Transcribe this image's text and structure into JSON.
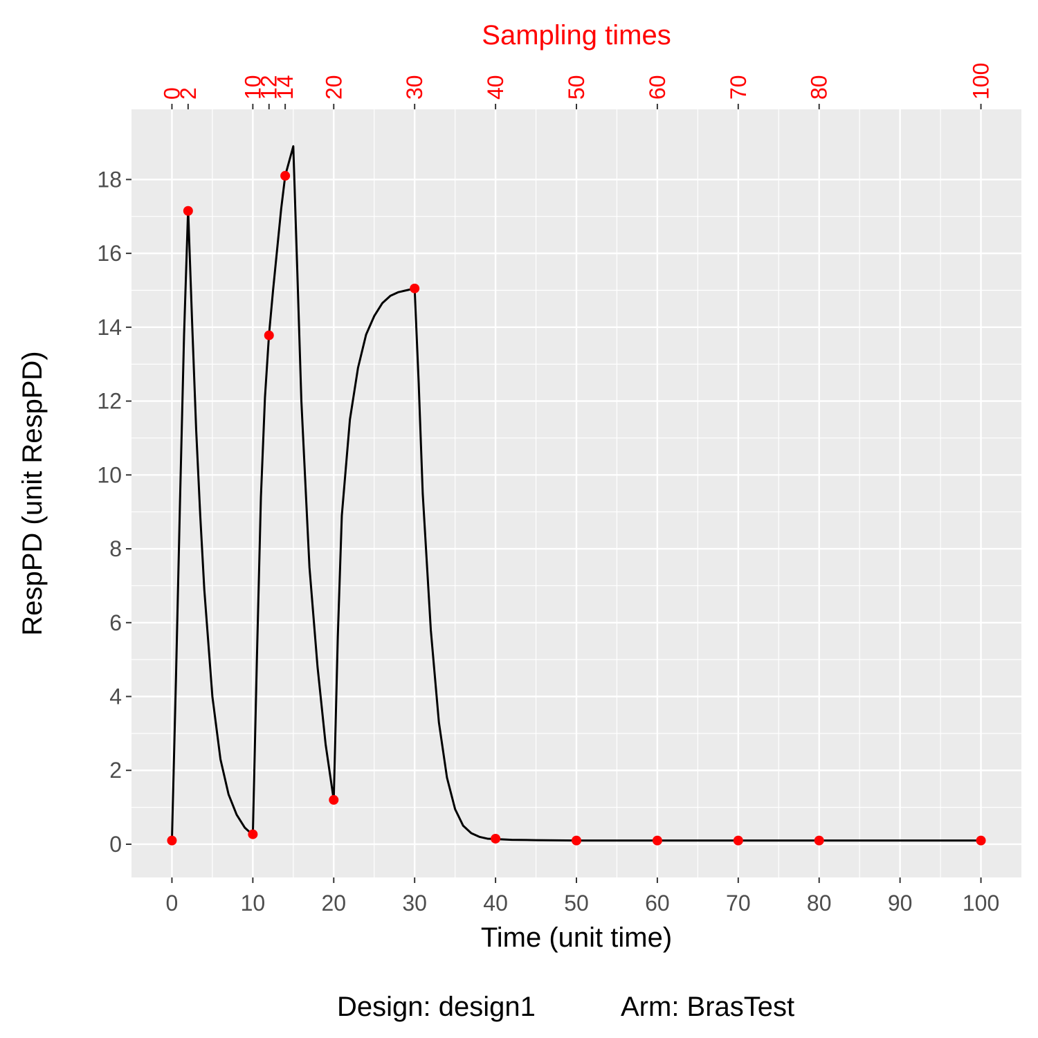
{
  "chart_data": {
    "type": "line",
    "title": "",
    "xlabel": "Time (unit time)",
    "ylabel": "RespPD (unit RespPD)",
    "top_axis_title": "Sampling times",
    "caption_design": "Design: design1",
    "caption_arm": "Arm: BrasTest",
    "xlim": [
      -5,
      105
    ],
    "ylim": [
      -0.9,
      19.9
    ],
    "x_ticks": [
      0,
      10,
      20,
      30,
      40,
      50,
      60,
      70,
      80,
      90,
      100
    ],
    "x_tick_labels": [
      "0",
      "10",
      "20",
      "30",
      "40",
      "50",
      "60",
      "70",
      "80",
      "90",
      "100"
    ],
    "y_ticks": [
      0,
      2,
      4,
      6,
      8,
      10,
      12,
      14,
      16,
      18
    ],
    "y_tick_labels": [
      "0",
      "2",
      "4",
      "6",
      "8",
      "10",
      "12",
      "14",
      "16",
      "18"
    ],
    "sampling_times": [
      0,
      2,
      10,
      12,
      14,
      20,
      30,
      40,
      50,
      60,
      70,
      80,
      100
    ],
    "sampling_time_labels": [
      "0",
      "2",
      "10",
      "12",
      "14",
      "20",
      "30",
      "40",
      "50",
      "60",
      "70",
      "80",
      "100"
    ],
    "grid": true,
    "panel_color": "#ebebeb",
    "curve_color": "#000000",
    "point_color": "#ff0000",
    "series": [
      {
        "name": "",
        "type": "line",
        "x": [
          0,
          0.5,
          1,
          1.5,
          2,
          2.5,
          3,
          3.5,
          4,
          5,
          6,
          7,
          8,
          9,
          10,
          10.5,
          11,
          11.5,
          12,
          12.5,
          13,
          13.5,
          14,
          14.5,
          15,
          15.5,
          16,
          17,
          18,
          19,
          20,
          20.5,
          21,
          22,
          23,
          24,
          25,
          26,
          27,
          28,
          29,
          30,
          30.5,
          31,
          32,
          33,
          34,
          35,
          36,
          37,
          38,
          39,
          40,
          42,
          45,
          50,
          60,
          70,
          80,
          90,
          100
        ],
        "y": [
          0.1,
          4.5,
          9.3,
          13.8,
          17.2,
          14.1,
          11.2,
          8.9,
          6.9,
          4.0,
          2.3,
          1.35,
          0.8,
          0.45,
          0.25,
          5.0,
          9.4,
          12.1,
          13.8,
          15.0,
          16.1,
          17.2,
          18.1,
          18.5,
          18.9,
          15.5,
          12.0,
          7.5,
          4.8,
          2.7,
          1.2,
          5.6,
          8.9,
          11.5,
          12.9,
          13.8,
          14.3,
          14.65,
          14.85,
          14.95,
          15.0,
          15.05,
          12.5,
          9.5,
          5.8,
          3.3,
          1.8,
          0.95,
          0.5,
          0.3,
          0.2,
          0.15,
          0.14,
          0.12,
          0.11,
          0.1,
          0.1,
          0.1,
          0.1,
          0.1,
          0.1
        ]
      },
      {
        "name": "",
        "type": "scatter",
        "x": [
          0,
          2,
          10,
          12,
          14,
          20,
          30,
          40,
          50,
          60,
          70,
          80,
          100
        ],
        "y": [
          0.1,
          17.15,
          0.27,
          13.78,
          18.1,
          1.2,
          15.05,
          0.15,
          0.1,
          0.1,
          0.1,
          0.1,
          0.1
        ]
      }
    ]
  }
}
